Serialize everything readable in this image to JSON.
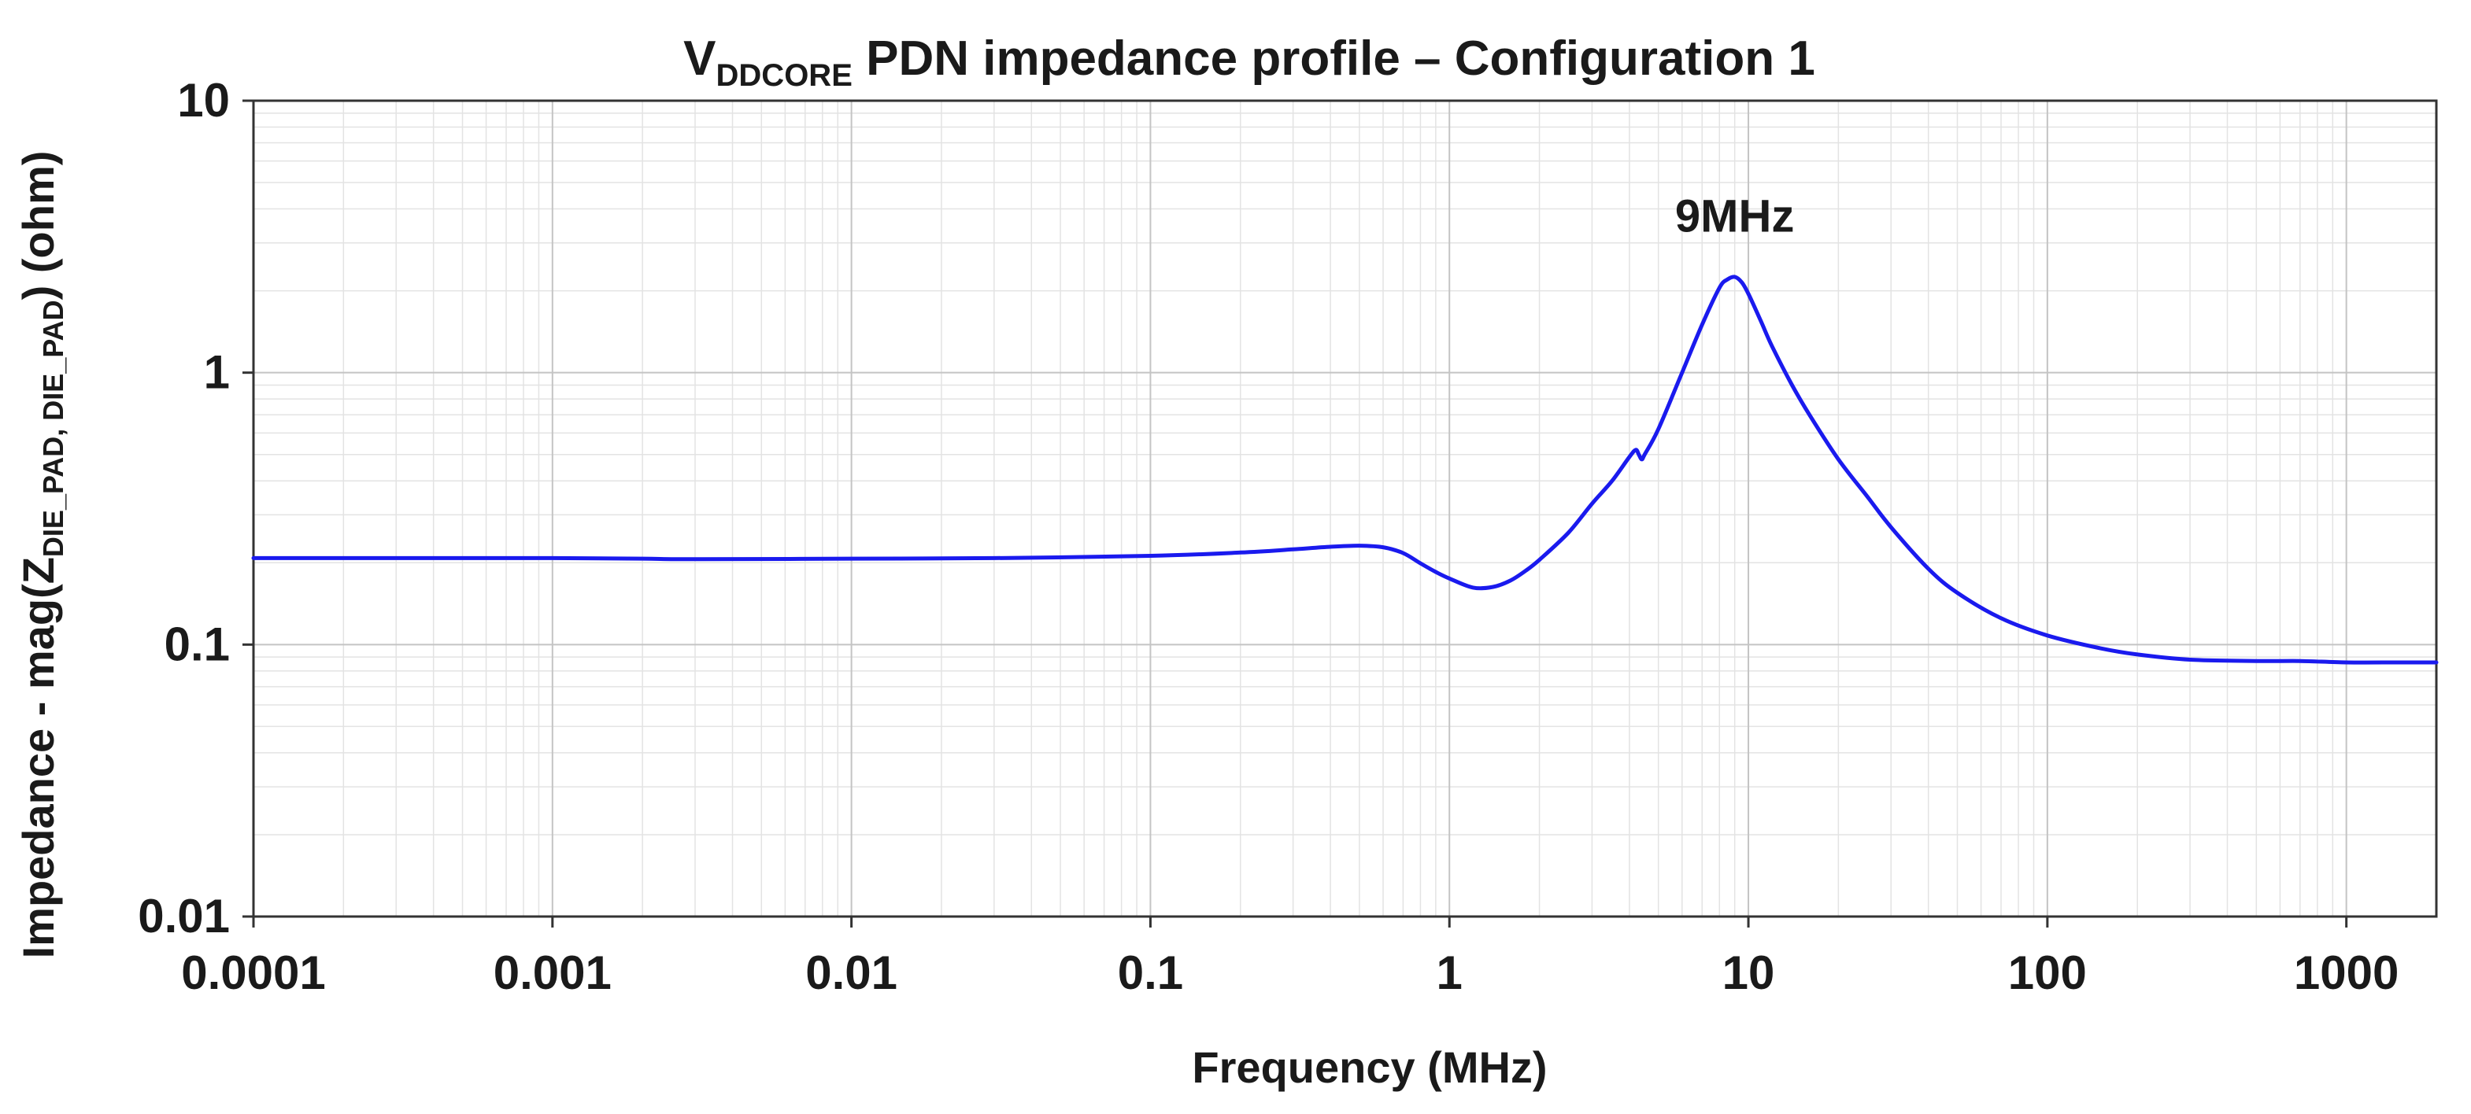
{
  "chart_data": {
    "type": "line",
    "title": {
      "prefix": "V",
      "prefix_subscript": "DDCORE",
      "text": " PDN impedance profile – Configuration 1"
    },
    "xlabel": "Frequency (MHz)",
    "ylabel": {
      "before": "Impedance - mag(Z",
      "subscript": "DIE_PAD, DIE_PAD",
      "after": ") (ohm)"
    },
    "x_scale": "log",
    "y_scale": "log",
    "xlim": [
      0.0001,
      2000
    ],
    "ylim": [
      0.01,
      10
    ],
    "x_ticks": [
      {
        "value": 0.0001,
        "label": "0.0001"
      },
      {
        "value": 0.001,
        "label": "0.001"
      },
      {
        "value": 0.01,
        "label": "0.01"
      },
      {
        "value": 0.1,
        "label": "0.1"
      },
      {
        "value": 1,
        "label": "1"
      },
      {
        "value": 10,
        "label": "10"
      },
      {
        "value": 100,
        "label": "100"
      },
      {
        "value": 1000,
        "label": "1000"
      }
    ],
    "y_ticks": [
      {
        "value": 0.01,
        "label": "0.01"
      },
      {
        "value": 0.1,
        "label": "0.1"
      },
      {
        "value": 1,
        "label": "1"
      },
      {
        "value": 10,
        "label": "10"
      }
    ],
    "grid": true,
    "annotations": [
      {
        "text": "9MHz",
        "x": 9,
        "y": 3.3
      }
    ],
    "series": [
      {
        "name": "Z(DIE_PAD, DIE_PAD)",
        "color": "#1a1aee",
        "x": [
          0.0001,
          0.0003,
          0.001,
          0.002,
          0.003,
          0.01,
          0.03,
          0.1,
          0.2,
          0.3,
          0.4,
          0.5,
          0.6,
          0.7,
          0.8,
          0.9,
          1.0,
          1.2,
          1.4,
          1.6,
          1.8,
          2.0,
          2.5,
          3.0,
          3.5,
          4.0,
          4.2,
          4.3,
          4.4,
          4.5,
          5.0,
          6.0,
          7.0,
          8.0,
          8.5,
          9.0,
          9.5,
          10,
          11,
          12,
          14,
          16,
          20,
          25,
          30,
          40,
          50,
          70,
          100,
          150,
          200,
          300,
          500,
          700,
          1000,
          1500,
          2000
        ],
        "values": [
          0.208,
          0.208,
          0.208,
          0.207,
          0.206,
          0.207,
          0.208,
          0.212,
          0.218,
          0.224,
          0.229,
          0.231,
          0.228,
          0.217,
          0.199,
          0.185,
          0.175,
          0.162,
          0.163,
          0.172,
          0.187,
          0.205,
          0.258,
          0.33,
          0.4,
          0.49,
          0.52,
          0.5,
          0.48,
          0.5,
          0.62,
          1.0,
          1.5,
          2.05,
          2.2,
          2.25,
          2.15,
          1.95,
          1.55,
          1.25,
          0.9,
          0.7,
          0.48,
          0.35,
          0.27,
          0.19,
          0.155,
          0.125,
          0.108,
          0.097,
          0.092,
          0.088,
          0.087,
          0.087,
          0.086,
          0.086,
          0.086
        ]
      }
    ]
  }
}
